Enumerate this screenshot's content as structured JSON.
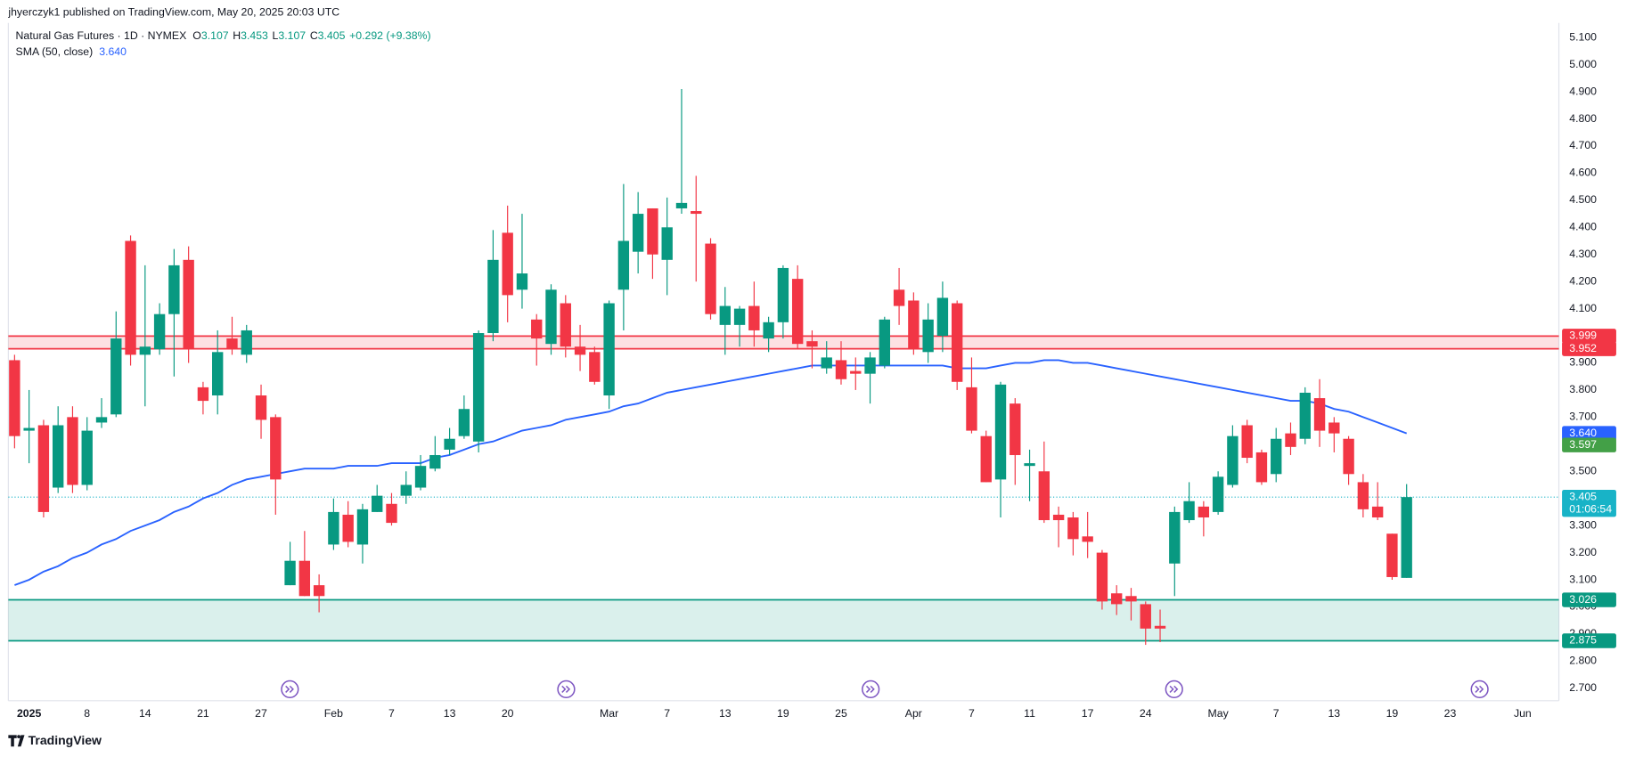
{
  "header": "jhyerczyk1 published on TradingView.com, May 20, 2025 20:03 UTC",
  "footer": "TradingView",
  "chart_data": {
    "type": "candlestick",
    "title": "Natural Gas Futures · 1D · NYMEX",
    "legend_ohlc": [
      {
        "key": "O",
        "value": "3.107"
      },
      {
        "key": "H",
        "value": "3.453"
      },
      {
        "key": "L",
        "value": "3.107"
      },
      {
        "key": "C",
        "value": "3.405"
      }
    ],
    "change": "+0.292 (+9.38%)",
    "up_color": "#089981",
    "down_color": "#f23645",
    "open": [
      3.91,
      3.65,
      3.67,
      3.44,
      3.7,
      3.45,
      3.68,
      3.71,
      4.35,
      3.93,
      3.95,
      4.08,
      4.28,
      3.81,
      3.78,
      3.99,
      3.93,
      3.78,
      3.7,
      3.08,
      3.17,
      3.08,
      3.23,
      3.34,
      3.23,
      3.35,
      3.38,
      3.41,
      3.44,
      3.51,
      3.58,
      3.63,
      3.61,
      4.01,
      4.38,
      4.17,
      4.06,
      3.97,
      4.12,
      3.96,
      3.94,
      3.78,
      4.17,
      4.31,
      4.47,
      4.28,
      4.47,
      4.46,
      4.34,
      4.04,
      4.04,
      4.11,
      3.99,
      4.05,
      4.21,
      3.98,
      3.88,
      3.91,
      3.87,
      3.86,
      3.89,
      4.17,
      4.13,
      3.94,
      4.0,
      4.12,
      3.81,
      3.63,
      3.47,
      3.75,
      3.52,
      3.5,
      3.34,
      3.33,
      3.26,
      3.2,
      3.05,
      3.04,
      3.01,
      2.93,
      3.16,
      3.32,
      3.37,
      3.35,
      3.45,
      3.67,
      3.57,
      3.49,
      3.64,
      3.62,
      3.77,
      3.68,
      3.62,
      3.46,
      3.37,
      3.27,
      3.107
    ],
    "high": [
      3.93,
      3.8,
      3.69,
      3.74,
      3.74,
      3.7,
      3.77,
      4.09,
      4.37,
      4.26,
      4.12,
      4.32,
      4.33,
      3.83,
      4.02,
      4.07,
      4.04,
      3.82,
      3.71,
      3.24,
      3.28,
      3.12,
      3.4,
      3.39,
      3.38,
      3.45,
      3.42,
      3.5,
      3.56,
      3.63,
      3.66,
      3.78,
      4.02,
      4.39,
      4.48,
      4.45,
      4.08,
      4.19,
      4.15,
      4.04,
      3.96,
      4.13,
      4.56,
      4.53,
      4.47,
      4.51,
      4.91,
      4.59,
      4.36,
      4.18,
      4.11,
      4.2,
      4.07,
      4.26,
      4.26,
      4.02,
      3.98,
      3.98,
      3.92,
      3.94,
      4.07,
      4.25,
      4.16,
      4.12,
      4.2,
      4.13,
      3.92,
      3.65,
      3.83,
      3.77,
      3.58,
      3.61,
      3.37,
      3.35,
      3.35,
      3.21,
      3.08,
      3.07,
      3.02,
      2.99,
      3.37,
      3.46,
      3.39,
      3.5,
      3.67,
      3.69,
      3.58,
      3.66,
      3.68,
      3.81,
      3.84,
      3.7,
      3.63,
      3.49,
      3.46,
      3.27,
      3.453
    ],
    "low": [
      3.585,
      3.53,
      3.33,
      3.42,
      3.42,
      3.43,
      3.66,
      3.7,
      3.89,
      3.74,
      3.93,
      3.85,
      3.9,
      3.71,
      3.71,
      3.93,
      3.9,
      3.62,
      3.34,
      3.08,
      3.04,
      2.98,
      3.21,
      3.22,
      3.16,
      3.35,
      3.3,
      3.38,
      3.43,
      3.5,
      3.56,
      3.62,
      3.57,
      3.98,
      4.05,
      4.1,
      3.89,
      3.93,
      3.92,
      3.87,
      3.82,
      3.73,
      4.02,
      4.23,
      4.21,
      4.15,
      4.45,
      4.2,
      4.06,
      3.93,
      3.96,
      3.96,
      3.94,
      3.99,
      3.95,
      3.88,
      3.86,
      3.82,
      3.8,
      3.75,
      3.88,
      4.04,
      3.93,
      3.9,
      3.94,
      3.8,
      3.64,
      3.46,
      3.33,
      3.45,
      3.39,
      3.31,
      3.22,
      3.19,
      3.18,
      2.99,
      2.97,
      2.95,
      2.86,
      2.87,
      3.04,
      3.31,
      3.26,
      3.34,
      3.44,
      3.53,
      3.45,
      3.46,
      3.56,
      3.6,
      3.59,
      3.57,
      3.45,
      3.33,
      3.32,
      3.1,
      3.107
    ],
    "close": [
      3.63,
      3.66,
      3.35,
      3.67,
      3.45,
      3.65,
      3.7,
      3.99,
      3.93,
      3.96,
      4.08,
      4.26,
      3.95,
      3.76,
      3.94,
      3.95,
      4.02,
      3.69,
      3.47,
      3.17,
      3.04,
      3.04,
      3.35,
      3.24,
      3.36,
      3.41,
      3.31,
      3.45,
      3.52,
      3.56,
      3.62,
      3.73,
      4.01,
      4.28,
      4.15,
      4.23,
      3.99,
      4.17,
      3.96,
      3.93,
      3.83,
      4.12,
      4.35,
      4.45,
      4.3,
      4.4,
      4.49,
      4.45,
      4.08,
      4.11,
      4.1,
      4.02,
      4.05,
      4.25,
      3.97,
      3.96,
      3.92,
      3.84,
      3.86,
      3.92,
      4.06,
      4.11,
      3.95,
      4.06,
      4.14,
      3.83,
      3.65,
      3.46,
      3.82,
      3.56,
      3.53,
      3.32,
      3.32,
      3.25,
      3.24,
      3.02,
      3.01,
      3.02,
      2.92,
      2.92,
      3.35,
      3.39,
      3.33,
      3.48,
      3.63,
      3.55,
      3.46,
      3.62,
      3.59,
      3.79,
      3.65,
      3.64,
      3.49,
      3.36,
      3.33,
      3.11,
      3.405
    ],
    "series": [
      {
        "name": "SMA (50, close)",
        "color": "#2962ff",
        "label": {
          "value": 3.64,
          "label": "3.640"
        },
        "values": [
          3.08,
          3.1,
          3.13,
          3.15,
          3.18,
          3.2,
          3.23,
          3.25,
          3.28,
          3.3,
          3.32,
          3.35,
          3.37,
          3.4,
          3.42,
          3.45,
          3.47,
          3.48,
          3.49,
          3.5,
          3.51,
          3.51,
          3.51,
          3.52,
          3.52,
          3.52,
          3.53,
          3.53,
          3.53,
          3.55,
          3.56,
          3.58,
          3.6,
          3.61,
          3.63,
          3.65,
          3.66,
          3.67,
          3.69,
          3.7,
          3.71,
          3.72,
          3.74,
          3.75,
          3.77,
          3.79,
          3.8,
          3.81,
          3.82,
          3.83,
          3.84,
          3.85,
          3.86,
          3.87,
          3.88,
          3.89,
          3.89,
          3.89,
          3.89,
          3.89,
          3.89,
          3.89,
          3.89,
          3.89,
          3.89,
          3.88,
          3.88,
          3.88,
          3.89,
          3.9,
          3.9,
          3.91,
          3.91,
          3.9,
          3.9,
          3.89,
          3.88,
          3.87,
          3.86,
          3.85,
          3.84,
          3.83,
          3.82,
          3.81,
          3.8,
          3.79,
          3.78,
          3.77,
          3.76,
          3.76,
          3.75,
          3.73,
          3.72,
          3.7,
          3.68,
          3.66,
          3.64
        ]
      }
    ],
    "zones": [
      {
        "color": "#f23645",
        "high": {
          "value": 3.999,
          "label": "3.999"
        },
        "low": {
          "value": 3.952,
          "label": "3.952"
        }
      },
      {
        "color": "#089981",
        "high": {
          "value": 3.026,
          "label": "3.026"
        },
        "low": {
          "value": 2.875,
          "label": "2.875"
        }
      }
    ],
    "marker_label": {
      "value": 3.597,
      "label": "3.597",
      "color": "#43a047"
    },
    "last_price": {
      "value": 3.405,
      "label": "3.405",
      "countdown": "01:06:54",
      "color": "#18b3c7"
    },
    "xlim": [
      -0.43,
      106.5
    ],
    "xticks": [
      {
        "value": 1,
        "label": "2025"
      },
      {
        "value": 5,
        "label": "8"
      },
      {
        "value": 9,
        "label": "14"
      },
      {
        "value": 13,
        "label": "21"
      },
      {
        "value": 17,
        "label": "27"
      },
      {
        "value": 22,
        "label": "Feb"
      },
      {
        "value": 26,
        "label": "7"
      },
      {
        "value": 30,
        "label": "13"
      },
      {
        "value": 34,
        "label": "20"
      },
      {
        "value": 41,
        "label": "Mar"
      },
      {
        "value": 45,
        "label": "7"
      },
      {
        "value": 49,
        "label": "13"
      },
      {
        "value": 53,
        "label": "19"
      },
      {
        "value": 57,
        "label": "25"
      },
      {
        "value": 62,
        "label": "Apr"
      },
      {
        "value": 66,
        "label": "7"
      },
      {
        "value": 70,
        "label": "11"
      },
      {
        "value": 74,
        "label": "17"
      },
      {
        "value": 78,
        "label": "24"
      },
      {
        "value": 83,
        "label": "May"
      },
      {
        "value": 87,
        "label": "7"
      },
      {
        "value": 91,
        "label": "13"
      },
      {
        "value": 95,
        "label": "19"
      },
      {
        "value": 99,
        "label": "23"
      },
      {
        "value": 104,
        "label": "Jun"
      }
    ],
    "ylim": [
      2.654,
      5.154
    ],
    "yticks": [
      {
        "value": 2.7,
        "label": "2.700"
      },
      {
        "value": 2.8,
        "label": "2.800"
      },
      {
        "value": 2.9,
        "label": "2.900"
      },
      {
        "value": 3.0,
        "label": "3.000"
      },
      {
        "value": 3.1,
        "label": "3.100"
      },
      {
        "value": 3.2,
        "label": "3.200"
      },
      {
        "value": 3.3,
        "label": "3.300"
      },
      {
        "value": 3.4,
        "label": "3.400"
      },
      {
        "value": 3.5,
        "label": "3.500"
      },
      {
        "value": 3.6,
        "label": "3.600"
      },
      {
        "value": 3.7,
        "label": "3.700"
      },
      {
        "value": 3.8,
        "label": "3.800"
      },
      {
        "value": 3.9,
        "label": "3.900"
      },
      {
        "value": 4.0,
        "label": "4.000"
      },
      {
        "value": 4.1,
        "label": "4.100"
      },
      {
        "value": 4.2,
        "label": "4.200"
      },
      {
        "value": 4.3,
        "label": "4.300"
      },
      {
        "value": 4.4,
        "label": "4.400"
      },
      {
        "value": 4.5,
        "label": "4.500"
      },
      {
        "value": 4.6,
        "label": "4.600"
      },
      {
        "value": 4.7,
        "label": "4.700"
      },
      {
        "value": 4.8,
        "label": "4.800"
      },
      {
        "value": 4.9,
        "label": "4.900"
      },
      {
        "value": 5.0,
        "label": "5.000"
      },
      {
        "value": 5.1,
        "label": "5.100"
      }
    ],
    "grid": false
  }
}
